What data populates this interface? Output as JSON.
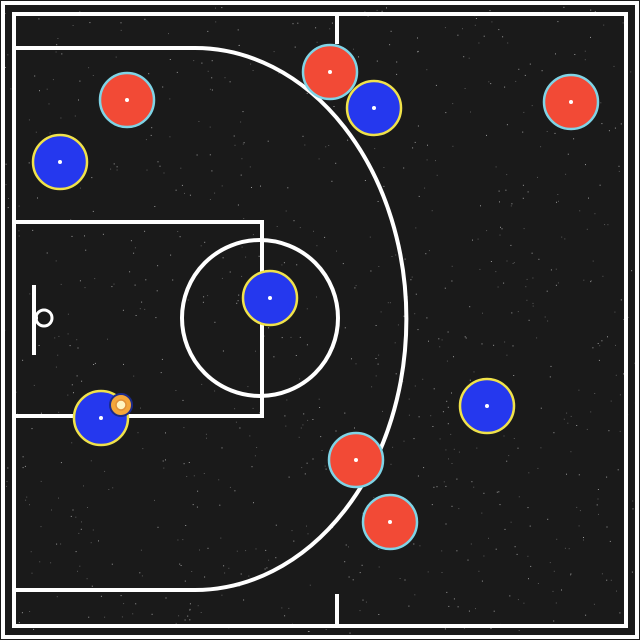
{
  "colors": {
    "floor": "#1a1a1a",
    "lines": "#ffffff",
    "team_red": "#f24a36",
    "team_red_ring": "#7fd4e6",
    "team_blue": "#2538ee",
    "team_blue_ring": "#f0e24a",
    "ball": "#f4a63a",
    "ball_ring": "#fff4c0"
  },
  "players": [
    {
      "team": "red"
    },
    {
      "team": "red"
    },
    {
      "team": "red"
    },
    {
      "team": "red"
    },
    {
      "team": "red"
    },
    {
      "team": "blue"
    },
    {
      "team": "blue"
    },
    {
      "team": "blue"
    },
    {
      "team": "blue"
    },
    {
      "team": "blue",
      "has_ball": true
    }
  ]
}
